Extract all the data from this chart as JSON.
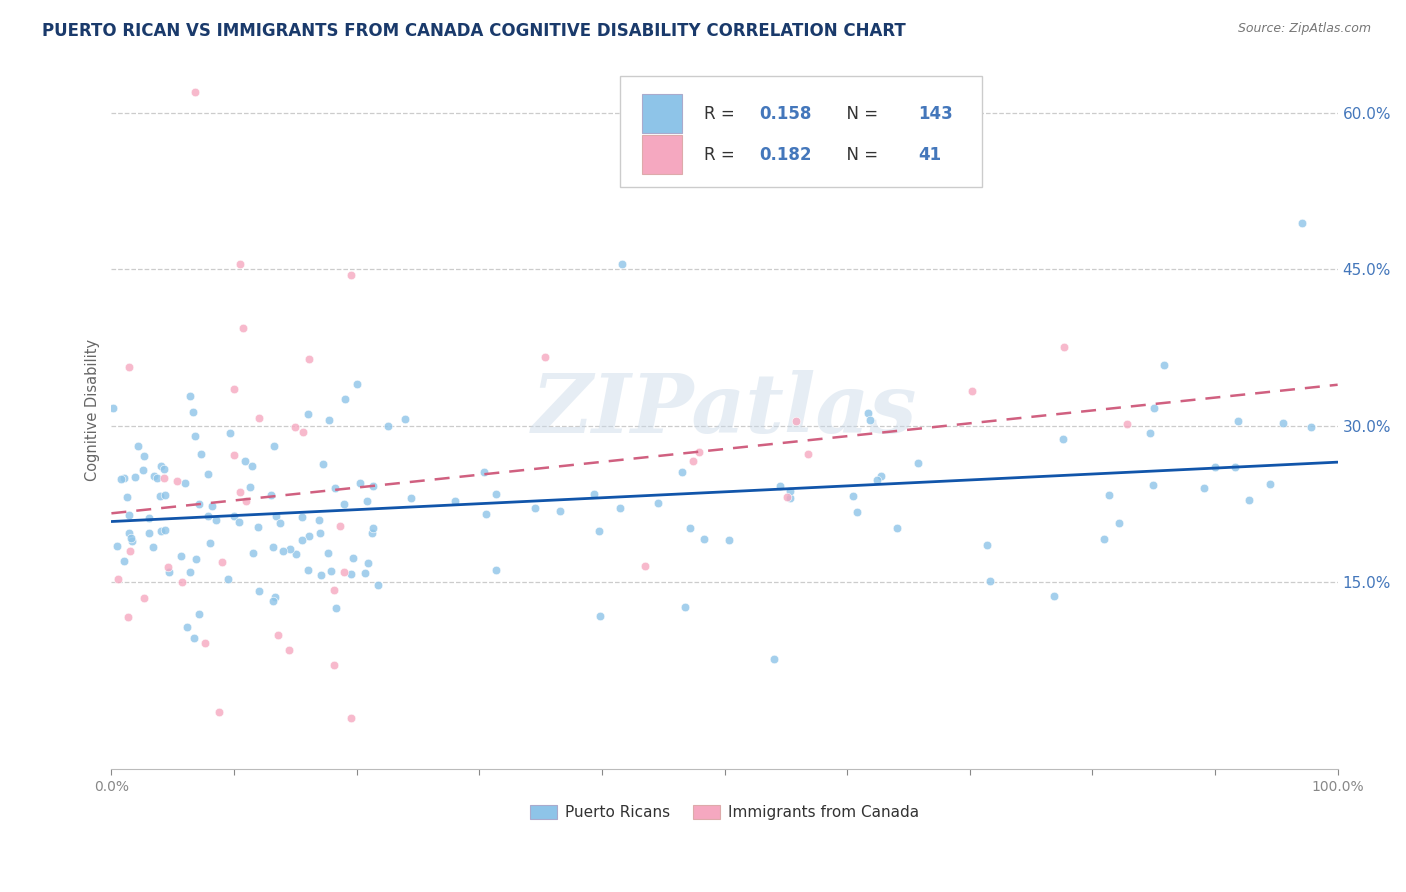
{
  "title": "PUERTO RICAN VS IMMIGRANTS FROM CANADA COGNITIVE DISABILITY CORRELATION CHART",
  "source": "Source: ZipAtlas.com",
  "ylabel": "Cognitive Disability",
  "series1_name": "Puerto Ricans",
  "series2_name": "Immigrants from Canada",
  "series1_color": "#8EC4E8",
  "series2_color": "#F5A8C0",
  "series1_line_color": "#1155AA",
  "series2_line_color": "#D06080",
  "series1_R": 0.158,
  "series1_N": 143,
  "series2_R": 0.182,
  "series2_N": 41,
  "xlim": [
    0.0,
    1.0
  ],
  "ylim": [
    -0.03,
    0.66
  ],
  "yticks": [
    0.15,
    0.3,
    0.45,
    0.6
  ],
  "xticks": [
    0.0,
    0.1,
    0.2,
    0.3,
    0.4,
    0.5,
    0.6,
    0.7,
    0.8,
    0.9,
    1.0
  ],
  "background_color": "#FFFFFF",
  "grid_color": "#CCCCCC",
  "title_color": "#1a3a6b",
  "axis_label_color": "#4477BB",
  "legend_text_color": "#222222"
}
